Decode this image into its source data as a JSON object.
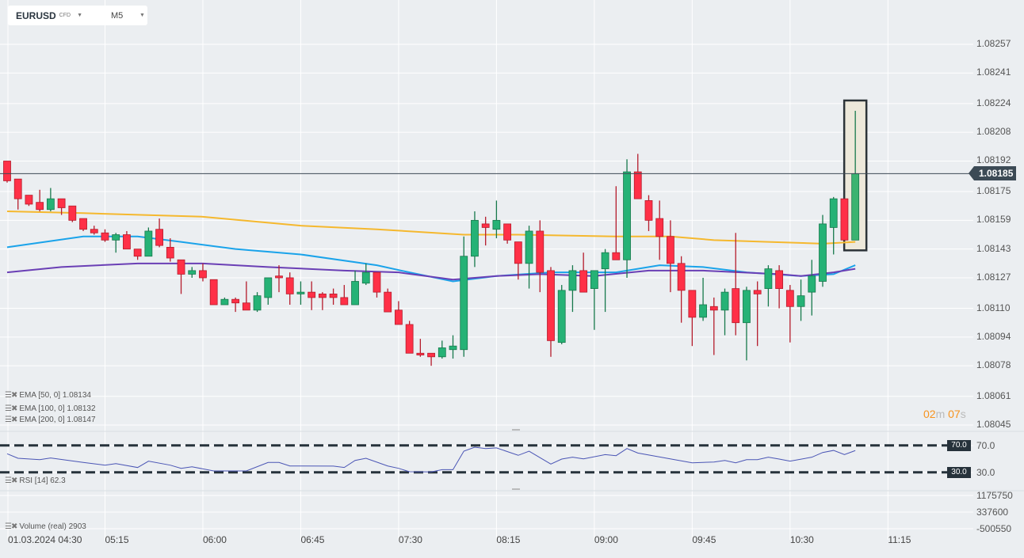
{
  "toolbar": {
    "symbol": "EURUSD",
    "instrument_type": "CFD",
    "timeframe": "M5"
  },
  "colors": {
    "bull": "#26b276",
    "bull_border": "#17794c",
    "bear": "#ff3047",
    "bear_border": "#b51c2c",
    "ema50": "#1aa3ea",
    "ema100": "#6a3fb5",
    "ema200": "#f5b82e",
    "rsi": "#4a55b5",
    "grid": "#ffffff",
    "background": "#ebeef1",
    "highlight_fill": "#ede8da"
  },
  "icons": {
    "indicator_menu": "list-icon",
    "indicator_remove": "close-x-icon",
    "dropdown": "caret-down-icon"
  },
  "current_price": "1.08185",
  "countdown": {
    "minutes": "02",
    "minutes_unit": "m",
    "seconds": "07",
    "seconds_unit": "s"
  },
  "legends": {
    "ema50": "EMA  [50,  0]  1.08134",
    "ema100": "EMA  [100,  0]  1.08132",
    "ema200": "EMA  [200,  0]  1.08147",
    "rsi": "RSI  [14]  62.3",
    "volume": "Volume  (real)  2903"
  },
  "price_axis": [
    "1.08257",
    "1.08241",
    "1.08224",
    "1.08208",
    "1.08192",
    "1.08175",
    "1.08159",
    "1.08143",
    "1.08127",
    "1.08110",
    "1.08094",
    "1.08078",
    "1.08061",
    "1.08045"
  ],
  "rsi_axis": {
    "upper": "70.0",
    "lower": "30.0"
  },
  "volume_axis": [
    "1175750",
    "337600",
    "-500550"
  ],
  "time_axis": [
    "01.03.2024  04:30",
    "05:15",
    "06:00",
    "06:45",
    "07:30",
    "08:15",
    "09:00",
    "09:45",
    "10:30",
    "11:15"
  ],
  "chart_data": {
    "type": "candlestick",
    "symbol": "EURUSD",
    "timeframe": "M5",
    "ylim": [
      1.08038,
      1.08264
    ],
    "grid": true,
    "ohlc": [
      [
        1.08192,
        1.08192,
        1.0818,
        1.08181
      ],
      [
        1.08182,
        1.08182,
        1.08165,
        1.08171
      ],
      [
        1.08173,
        1.08173,
        1.08167,
        1.08168
      ],
      [
        1.08169,
        1.08176,
        1.08164,
        1.08165
      ],
      [
        1.08165,
        1.08177,
        1.08164,
        1.08171
      ],
      [
        1.08171,
        1.08171,
        1.08162,
        1.08166
      ],
      [
        1.08167,
        1.08167,
        1.08158,
        1.08159
      ],
      [
        1.0816,
        1.0816,
        1.08153,
        1.08154
      ],
      [
        1.08154,
        1.08156,
        1.08151,
        1.08152
      ],
      [
        1.08152,
        1.08154,
        1.08147,
        1.08148
      ],
      [
        1.08148,
        1.08152,
        1.08141,
        1.08151
      ],
      [
        1.08151,
        1.08153,
        1.08143,
        1.08143
      ],
      [
        1.08143,
        1.08143,
        1.08137,
        1.08139
      ],
      [
        1.08139,
        1.08155,
        1.08139,
        1.08153
      ],
      [
        1.08154,
        1.0816,
        1.08144,
        1.08145
      ],
      [
        1.08144,
        1.08149,
        1.08136,
        1.08138
      ],
      [
        1.08137,
        1.08137,
        1.08118,
        1.08129
      ],
      [
        1.08129,
        1.08133,
        1.08127,
        1.08131
      ],
      [
        1.08131,
        1.08135,
        1.08125,
        1.08127
      ],
      [
        1.08126,
        1.08126,
        1.08112,
        1.08112
      ],
      [
        1.08112,
        1.08116,
        1.08112,
        1.08115
      ],
      [
        1.08115,
        1.08116,
        1.08108,
        1.08113
      ],
      [
        1.08113,
        1.08125,
        1.08109,
        1.08109
      ],
      [
        1.08109,
        1.08119,
        1.08108,
        1.08117
      ],
      [
        1.08116,
        1.08127,
        1.08112,
        1.08127
      ],
      [
        1.08128,
        1.08134,
        1.08119,
        1.08127
      ],
      [
        1.08127,
        1.0813,
        1.08112,
        1.08118
      ],
      [
        1.08118,
        1.08125,
        1.08112,
        1.08119
      ],
      [
        1.08119,
        1.08125,
        1.08109,
        1.08116
      ],
      [
        1.08118,
        1.08119,
        1.08109,
        1.08116
      ],
      [
        1.08118,
        1.08121,
        1.08112,
        1.08116
      ],
      [
        1.08116,
        1.08123,
        1.08112,
        1.08112
      ],
      [
        1.08112,
        1.08131,
        1.08112,
        1.08125
      ],
      [
        1.08124,
        1.08135,
        1.08123,
        1.0813
      ],
      [
        1.0813,
        1.0813,
        1.08116,
        1.08119
      ],
      [
        1.08119,
        1.08121,
        1.08108,
        1.08108
      ],
      [
        1.08109,
        1.08114,
        1.08101,
        1.08101
      ],
      [
        1.08101,
        1.08103,
        1.08085,
        1.08085
      ],
      [
        1.08085,
        1.08093,
        1.08083,
        1.08084
      ],
      [
        1.08085,
        1.08085,
        1.08078,
        1.08083
      ],
      [
        1.08083,
        1.08092,
        1.08082,
        1.08088
      ],
      [
        1.08087,
        1.08095,
        1.08082,
        1.08089
      ],
      [
        1.08087,
        1.0815,
        1.08083,
        1.08139
      ],
      [
        1.08139,
        1.08164,
        1.08133,
        1.08159
      ],
      [
        1.08157,
        1.08161,
        1.08145,
        1.08155
      ],
      [
        1.08154,
        1.0817,
        1.08149,
        1.08159
      ],
      [
        1.08157,
        1.08157,
        1.08146,
        1.08148
      ],
      [
        1.08147,
        1.08147,
        1.08126,
        1.08135
      ],
      [
        1.08135,
        1.08156,
        1.08121,
        1.08153
      ],
      [
        1.08153,
        1.08159,
        1.08119,
        1.0813
      ],
      [
        1.08131,
        1.08133,
        1.08083,
        1.08092
      ],
      [
        1.08091,
        1.08123,
        1.0809,
        1.0812
      ],
      [
        1.0812,
        1.08134,
        1.08108,
        1.08131
      ],
      [
        1.08131,
        1.08141,
        1.08119,
        1.08119
      ],
      [
        1.08121,
        1.08131,
        1.08098,
        1.08131
      ],
      [
        1.08132,
        1.08143,
        1.08108,
        1.08141
      ],
      [
        1.08141,
        1.08178,
        1.08137,
        1.08137
      ],
      [
        1.08137,
        1.08193,
        1.08127,
        1.08186
      ],
      [
        1.08186,
        1.08196,
        1.08171,
        1.08171
      ],
      [
        1.0817,
        1.08173,
        1.08153,
        1.08159
      ],
      [
        1.0816,
        1.0817,
        1.08137,
        1.0815
      ],
      [
        1.0815,
        1.08159,
        1.08119,
        1.08135
      ],
      [
        1.08135,
        1.08139,
        1.08102,
        1.0812
      ],
      [
        1.0812,
        1.0812,
        1.08089,
        1.08105
      ],
      [
        1.08105,
        1.08127,
        1.08103,
        1.08112
      ],
      [
        1.08111,
        1.08116,
        1.08084,
        1.08109
      ],
      [
        1.08109,
        1.08121,
        1.08095,
        1.08119
      ],
      [
        1.08121,
        1.08152,
        1.08095,
        1.08102
      ],
      [
        1.08102,
        1.08122,
        1.08081,
        1.0812
      ],
      [
        1.0812,
        1.08125,
        1.08089,
        1.08118
      ],
      [
        1.08121,
        1.08134,
        1.08111,
        1.08132
      ],
      [
        1.08131,
        1.08134,
        1.0811,
        1.08121
      ],
      [
        1.0812,
        1.08123,
        1.08091,
        1.08111
      ],
      [
        1.08111,
        1.08126,
        1.08103,
        1.08117
      ],
      [
        1.08119,
        1.08137,
        1.08106,
        1.08128
      ],
      [
        1.08125,
        1.08162,
        1.08122,
        1.08157
      ],
      [
        1.08155,
        1.08172,
        1.0814,
        1.08171
      ],
      [
        1.08171,
        1.08171,
        1.08148,
        1.08148
      ],
      [
        1.08148,
        1.0822,
        1.08148,
        1.08185
      ]
    ],
    "ema50": [
      [
        0,
        1.08144
      ],
      [
        7,
        1.0815
      ],
      [
        12,
        1.0815
      ],
      [
        16,
        1.08147
      ],
      [
        21,
        1.08143
      ],
      [
        27,
        1.0814
      ],
      [
        34,
        1.08134
      ],
      [
        37,
        1.0813
      ],
      [
        41,
        1.08125
      ],
      [
        45,
        1.08128
      ],
      [
        50,
        1.0813
      ],
      [
        56,
        1.0813
      ],
      [
        60,
        1.08134
      ],
      [
        64,
        1.08133
      ],
      [
        68,
        1.0813
      ],
      [
        73,
        1.08128
      ],
      [
        76,
        1.08129
      ],
      [
        78,
        1.08134
      ]
    ],
    "ema100": [
      [
        0,
        1.0813
      ],
      [
        5,
        1.08133
      ],
      [
        12,
        1.08135
      ],
      [
        18,
        1.08135
      ],
      [
        24,
        1.08133
      ],
      [
        31,
        1.08131
      ],
      [
        36,
        1.0813
      ],
      [
        41,
        1.08126
      ],
      [
        45,
        1.08128
      ],
      [
        49,
        1.08129
      ],
      [
        54,
        1.08128
      ],
      [
        59,
        1.08131
      ],
      [
        64,
        1.08131
      ],
      [
        71,
        1.08129
      ],
      [
        73,
        1.08128
      ],
      [
        76,
        1.0813
      ],
      [
        78,
        1.08132
      ]
    ],
    "ema200": [
      [
        0,
        1.08164
      ],
      [
        7,
        1.08163
      ],
      [
        18,
        1.08161
      ],
      [
        27,
        1.08156
      ],
      [
        34,
        1.08154
      ],
      [
        42,
        1.08151
      ],
      [
        47,
        1.08151
      ],
      [
        56,
        1.0815
      ],
      [
        61,
        1.0815
      ],
      [
        65,
        1.08148
      ],
      [
        70,
        1.08147
      ],
      [
        75,
        1.08146
      ],
      [
        78,
        1.08147
      ]
    ],
    "rsi": [
      [
        0,
        57.5
      ],
      [
        1,
        50.8
      ],
      [
        3,
        48.8
      ],
      [
        4,
        51.2
      ],
      [
        7,
        44.6
      ],
      [
        9,
        40.6
      ],
      [
        10,
        42.9
      ],
      [
        12,
        37.1
      ],
      [
        13,
        46.5
      ],
      [
        15,
        40.6
      ],
      [
        16,
        35.9
      ],
      [
        17,
        38.2
      ],
      [
        19,
        32
      ],
      [
        22,
        32
      ],
      [
        24,
        44.6
      ],
      [
        25,
        44.6
      ],
      [
        26,
        39.4
      ],
      [
        30,
        39.2
      ],
      [
        31,
        37.1
      ],
      [
        32,
        47.6
      ],
      [
        33,
        50.8
      ],
      [
        35,
        39.4
      ],
      [
        36,
        35.9
      ],
      [
        37,
        30.8
      ],
      [
        39,
        30.5
      ],
      [
        40,
        33.9
      ],
      [
        41,
        33.9
      ],
      [
        42,
        61.4
      ],
      [
        43,
        67.3
      ],
      [
        44,
        65.3
      ],
      [
        45,
        66.3
      ],
      [
        47,
        55.2
      ],
      [
        48,
        61.4
      ],
      [
        50,
        42.2
      ],
      [
        51,
        49.6
      ],
      [
        52,
        52.4
      ],
      [
        53,
        50.0
      ],
      [
        55,
        56.3
      ],
      [
        56,
        54.7
      ],
      [
        57,
        65.3
      ],
      [
        58,
        58.6
      ],
      [
        63,
        44.1
      ],
      [
        65,
        45.3
      ],
      [
        66,
        47.6
      ],
      [
        67,
        44.1
      ],
      [
        68,
        48.8
      ],
      [
        69,
        48.8
      ],
      [
        70,
        52.4
      ],
      [
        71,
        49.6
      ],
      [
        72,
        46.5
      ],
      [
        74,
        52.4
      ],
      [
        75,
        59.4
      ],
      [
        76,
        62.5
      ],
      [
        77,
        56.3
      ],
      [
        78,
        62.3
      ]
    ],
    "rsi_levels": [
      70,
      30
    ],
    "highlighted_candle": 78
  }
}
